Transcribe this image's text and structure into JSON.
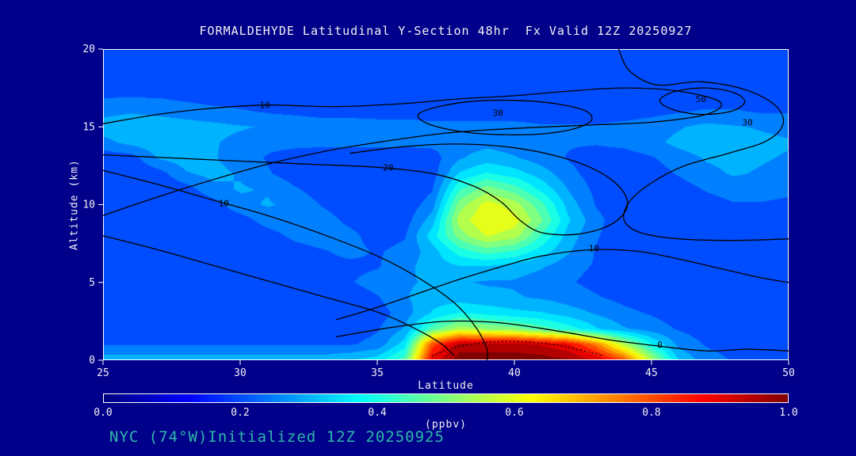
{
  "colors": {
    "background": "#00008B",
    "text": "#F2F2F2",
    "footer_text": "#2FB8A8",
    "contour_line": "#000000",
    "frame": "#FFFFFF"
  },
  "footer": "NYC (74°W)Initialized 12Z 20250925",
  "chart_data": {
    "type": "heatmap",
    "title": "FORMALDEHYDE Latitudinal Y-Section 48hr  Fx Valid 12Z 20250927",
    "xlabel": "Latitude",
    "ylabel": "Altitude (km)",
    "xlim": [
      25,
      50
    ],
    "ylim": [
      0,
      20
    ],
    "x_ticks": [
      25,
      30,
      35,
      40,
      45,
      50
    ],
    "y_ticks": [
      0,
      5,
      10,
      15,
      20
    ],
    "colormap": "jet",
    "grid": false,
    "x": [
      25,
      26,
      27,
      28,
      29,
      30,
      31,
      32,
      33,
      34,
      35,
      36,
      37,
      38,
      39,
      40,
      41,
      42,
      43,
      44,
      45,
      46,
      47,
      48,
      49,
      50
    ],
    "y": [
      0,
      1,
      2,
      3,
      4,
      5,
      6,
      7,
      8,
      9,
      10,
      11,
      12,
      13,
      14,
      15,
      16,
      17,
      18,
      19,
      20
    ],
    "values_units": "ppbv",
    "values": [
      [
        0.3,
        0.3,
        0.3,
        0.3,
        0.3,
        0.3,
        0.3,
        0.3,
        0.3,
        0.32,
        0.35,
        0.45,
        0.9,
        1.0,
        1.0,
        1.0,
        1.0,
        0.98,
        0.92,
        0.8,
        0.55,
        0.32,
        0.25,
        0.22,
        0.22,
        0.22
      ],
      [
        0.22,
        0.22,
        0.22,
        0.22,
        0.22,
        0.22,
        0.22,
        0.22,
        0.22,
        0.22,
        0.24,
        0.35,
        0.8,
        0.95,
        0.95,
        0.95,
        0.92,
        0.88,
        0.75,
        0.55,
        0.38,
        0.26,
        0.22,
        0.2,
        0.2,
        0.2
      ],
      [
        0.2,
        0.2,
        0.2,
        0.2,
        0.2,
        0.2,
        0.2,
        0.2,
        0.2,
        0.2,
        0.22,
        0.28,
        0.45,
        0.55,
        0.52,
        0.5,
        0.45,
        0.4,
        0.33,
        0.28,
        0.25,
        0.22,
        0.2,
        0.2,
        0.2,
        0.2
      ],
      [
        0.19,
        0.19,
        0.19,
        0.19,
        0.19,
        0.19,
        0.19,
        0.19,
        0.19,
        0.19,
        0.2,
        0.25,
        0.33,
        0.38,
        0.36,
        0.34,
        0.33,
        0.3,
        0.27,
        0.24,
        0.22,
        0.2,
        0.2,
        0.2,
        0.2,
        0.2
      ],
      [
        0.18,
        0.18,
        0.18,
        0.18,
        0.18,
        0.18,
        0.18,
        0.18,
        0.18,
        0.19,
        0.22,
        0.27,
        0.3,
        0.3,
        0.29,
        0.28,
        0.27,
        0.25,
        0.23,
        0.21,
        0.19,
        0.19,
        0.19,
        0.19,
        0.19,
        0.19
      ],
      [
        0.18,
        0.18,
        0.18,
        0.18,
        0.18,
        0.18,
        0.18,
        0.18,
        0.19,
        0.22,
        0.25,
        0.27,
        0.28,
        0.28,
        0.27,
        0.27,
        0.25,
        0.23,
        0.21,
        0.19,
        0.19,
        0.19,
        0.19,
        0.19,
        0.19,
        0.19
      ],
      [
        0.21,
        0.21,
        0.21,
        0.21,
        0.21,
        0.21,
        0.21,
        0.21,
        0.21,
        0.21,
        0.22,
        0.26,
        0.3,
        0.32,
        0.32,
        0.3,
        0.28,
        0.24,
        0.22,
        0.21,
        0.21,
        0.21,
        0.21,
        0.21,
        0.21,
        0.21
      ],
      [
        0.18,
        0.18,
        0.18,
        0.18,
        0.18,
        0.18,
        0.18,
        0.2,
        0.22,
        0.24,
        0.22,
        0.24,
        0.3,
        0.4,
        0.45,
        0.42,
        0.35,
        0.28,
        0.22,
        0.19,
        0.18,
        0.18,
        0.18,
        0.18,
        0.18,
        0.18
      ],
      [
        0.18,
        0.18,
        0.18,
        0.18,
        0.18,
        0.18,
        0.2,
        0.24,
        0.26,
        0.24,
        0.2,
        0.22,
        0.35,
        0.5,
        0.58,
        0.55,
        0.42,
        0.3,
        0.23,
        0.19,
        0.18,
        0.18,
        0.18,
        0.18,
        0.18,
        0.18
      ],
      [
        0.18,
        0.18,
        0.18,
        0.18,
        0.18,
        0.2,
        0.25,
        0.27,
        0.25,
        0.21,
        0.19,
        0.2,
        0.3,
        0.55,
        0.62,
        0.6,
        0.48,
        0.33,
        0.24,
        0.19,
        0.18,
        0.18,
        0.18,
        0.18,
        0.18,
        0.18
      ],
      [
        0.18,
        0.18,
        0.18,
        0.18,
        0.2,
        0.26,
        0.28,
        0.26,
        0.22,
        0.19,
        0.18,
        0.19,
        0.25,
        0.5,
        0.6,
        0.55,
        0.44,
        0.3,
        0.22,
        0.19,
        0.18,
        0.18,
        0.2,
        0.22,
        0.22,
        0.21
      ],
      [
        0.18,
        0.18,
        0.18,
        0.2,
        0.26,
        0.28,
        0.27,
        0.23,
        0.2,
        0.18,
        0.18,
        0.18,
        0.22,
        0.42,
        0.5,
        0.45,
        0.36,
        0.27,
        0.21,
        0.19,
        0.18,
        0.2,
        0.23,
        0.25,
        0.25,
        0.24
      ],
      [
        0.18,
        0.18,
        0.2,
        0.27,
        0.29,
        0.27,
        0.23,
        0.2,
        0.19,
        0.18,
        0.18,
        0.18,
        0.2,
        0.33,
        0.38,
        0.35,
        0.3,
        0.24,
        0.2,
        0.19,
        0.2,
        0.23,
        0.26,
        0.28,
        0.27,
        0.26
      ],
      [
        0.19,
        0.2,
        0.28,
        0.3,
        0.28,
        0.25,
        0.22,
        0.2,
        0.19,
        0.19,
        0.19,
        0.19,
        0.2,
        0.27,
        0.3,
        0.28,
        0.25,
        0.22,
        0.2,
        0.2,
        0.22,
        0.25,
        0.28,
        0.29,
        0.28,
        0.27
      ],
      [
        0.26,
        0.29,
        0.31,
        0.3,
        0.28,
        0.26,
        0.24,
        0.24,
        0.24,
        0.24,
        0.24,
        0.24,
        0.24,
        0.25,
        0.26,
        0.25,
        0.24,
        0.23,
        0.23,
        0.24,
        0.26,
        0.29,
        0.31,
        0.3,
        0.29,
        0.28
      ],
      [
        0.3,
        0.31,
        0.31,
        0.3,
        0.29,
        0.28,
        0.27,
        0.27,
        0.26,
        0.26,
        0.25,
        0.25,
        0.24,
        0.24,
        0.24,
        0.24,
        0.23,
        0.23,
        0.23,
        0.24,
        0.25,
        0.27,
        0.29,
        0.28,
        0.27,
        0.26
      ],
      [
        0.26,
        0.27,
        0.26,
        0.25,
        0.24,
        0.23,
        0.22,
        0.21,
        0.2,
        0.2,
        0.2,
        0.2,
        0.2,
        0.2,
        0.2,
        0.2,
        0.2,
        0.2,
        0.2,
        0.2,
        0.21,
        0.22,
        0.23,
        0.23,
        0.22,
        0.22
      ],
      [
        0.22,
        0.22,
        0.22,
        0.21,
        0.2,
        0.2,
        0.2,
        0.2,
        0.2,
        0.2,
        0.2,
        0.2,
        0.2,
        0.2,
        0.2,
        0.2,
        0.2,
        0.2,
        0.2,
        0.2,
        0.2,
        0.2,
        0.2,
        0.2,
        0.2,
        0.2
      ],
      [
        0.19,
        0.19,
        0.19,
        0.19,
        0.19,
        0.19,
        0.19,
        0.19,
        0.19,
        0.19,
        0.19,
        0.19,
        0.19,
        0.19,
        0.19,
        0.19,
        0.19,
        0.19,
        0.19,
        0.19,
        0.19,
        0.19,
        0.19,
        0.19,
        0.19,
        0.19
      ],
      [
        0.19,
        0.19,
        0.19,
        0.19,
        0.19,
        0.19,
        0.19,
        0.19,
        0.19,
        0.19,
        0.19,
        0.19,
        0.19,
        0.19,
        0.19,
        0.19,
        0.19,
        0.19,
        0.19,
        0.19,
        0.19,
        0.19,
        0.19,
        0.19,
        0.19,
        0.19
      ],
      [
        0.19,
        0.19,
        0.19,
        0.19,
        0.19,
        0.19,
        0.19,
        0.19,
        0.19,
        0.19,
        0.19,
        0.19,
        0.19,
        0.19,
        0.19,
        0.19,
        0.19,
        0.19,
        0.19,
        0.19,
        0.19,
        0.19,
        0.19,
        0.19,
        0.19,
        0.19
      ]
    ],
    "colorbar": {
      "label": "(ppbv)",
      "min": 0.0,
      "max": 1.0,
      "ticks": [
        "0.0",
        "0.2",
        "0.4",
        "0.6",
        "0.8",
        "1.0"
      ]
    },
    "contours": [
      {
        "level": 10,
        "closed": false,
        "dashed": false,
        "points": [
          [
            25,
            15.2
          ],
          [
            27,
            15.8
          ],
          [
            29,
            16.2
          ],
          [
            31,
            16.4
          ],
          [
            33.5,
            16.3
          ],
          [
            36,
            16.5
          ],
          [
            38,
            16.8
          ],
          [
            40,
            17.0
          ],
          [
            42,
            17.3
          ],
          [
            44,
            17.5
          ],
          [
            46,
            17.3
          ],
          [
            47.5,
            16.6
          ],
          [
            47,
            15.8
          ],
          [
            45,
            15.3
          ],
          [
            42.5,
            15.1
          ],
          [
            40,
            14.9
          ],
          [
            37.5,
            14.6
          ],
          [
            35,
            14.0
          ],
          [
            33,
            13.4
          ],
          [
            31,
            12.6
          ],
          [
            29,
            11.6
          ],
          [
            27,
            10.5
          ],
          [
            25,
            9.3
          ]
        ],
        "label": {
          "text": "10",
          "lat": 30.9,
          "alt": 16.4
        }
      },
      {
        "level": 30,
        "closed": true,
        "dashed": false,
        "points": [
          [
            36.5,
            15.8
          ],
          [
            37.5,
            16.4
          ],
          [
            39,
            16.7
          ],
          [
            41,
            16.6
          ],
          [
            42.5,
            16.1
          ],
          [
            42.8,
            15.4
          ],
          [
            42,
            14.8
          ],
          [
            40.5,
            14.5
          ],
          [
            38.5,
            14.6
          ],
          [
            37,
            15.1
          ]
        ],
        "label": {
          "text": "30",
          "lat": 39.4,
          "alt": 15.9
        }
      },
      {
        "level": 50,
        "closed": true,
        "dashed": false,
        "points": [
          [
            45.3,
            16.7
          ],
          [
            45.9,
            17.3
          ],
          [
            47,
            17.5
          ],
          [
            48,
            17.2
          ],
          [
            48.4,
            16.6
          ],
          [
            47.9,
            16.0
          ],
          [
            46.8,
            15.8
          ],
          [
            45.8,
            16.1
          ]
        ],
        "label": {
          "text": "50",
          "lat": 46.8,
          "alt": 16.8
        }
      },
      {
        "level": 30,
        "closed": false,
        "dashed": false,
        "points": [
          [
            43.8,
            20
          ],
          [
            44.2,
            18.6
          ],
          [
            45.2,
            17.7
          ],
          [
            46.8,
            17.9
          ],
          [
            48.4,
            17.4
          ],
          [
            49.5,
            16.4
          ],
          [
            49.8,
            15.2
          ],
          [
            49.2,
            14.1
          ],
          [
            47.8,
            13.3
          ],
          [
            46.2,
            12.5
          ],
          [
            45.0,
            11.4
          ],
          [
            44.2,
            10.2
          ],
          [
            44.0,
            9.0
          ],
          [
            44.6,
            8.2
          ],
          [
            46,
            7.8
          ],
          [
            48,
            7.7
          ],
          [
            50,
            7.8
          ]
        ],
        "label": {
          "text": "30",
          "lat": 48.5,
          "alt": 15.3
        }
      },
      {
        "level": 20,
        "closed": false,
        "dashed": false,
        "points": [
          [
            25,
            13.2
          ],
          [
            27.5,
            13.0
          ],
          [
            30,
            12.8
          ],
          [
            32.5,
            12.6
          ],
          [
            35,
            12.4
          ],
          [
            37,
            12.0
          ],
          [
            38.5,
            11.2
          ],
          [
            39.5,
            10.2
          ],
          [
            40.2,
            9.0
          ],
          [
            41.0,
            8.2
          ],
          [
            42.3,
            8.1
          ],
          [
            43.5,
            8.7
          ],
          [
            44.1,
            9.8
          ],
          [
            43.9,
            11.0
          ],
          [
            43.0,
            12.2
          ],
          [
            41.6,
            13.1
          ],
          [
            39.8,
            13.7
          ],
          [
            37.8,
            13.9
          ],
          [
            35.8,
            13.7
          ],
          [
            34,
            13.3
          ]
        ],
        "label": {
          "text": "20",
          "lat": 35.4,
          "alt": 12.4
        }
      },
      {
        "level": 10,
        "closed": false,
        "dashed": false,
        "points": [
          [
            33.5,
            2.6
          ],
          [
            35,
            3.4
          ],
          [
            36.5,
            4.3
          ],
          [
            38,
            5.2
          ],
          [
            39.5,
            6.0
          ],
          [
            41,
            6.7
          ],
          [
            42.8,
            7.1
          ],
          [
            44.5,
            7.0
          ],
          [
            46,
            6.5
          ],
          [
            47.5,
            5.9
          ],
          [
            49,
            5.3
          ],
          [
            50,
            5.0
          ]
        ],
        "label": {
          "text": "10",
          "lat": 42.9,
          "alt": 7.2
        }
      },
      {
        "level": 10,
        "closed": false,
        "dashed": false,
        "points": [
          [
            25,
            12.2
          ],
          [
            27,
            11.3
          ],
          [
            29,
            10.3
          ],
          [
            31,
            9.3
          ],
          [
            33,
            8.1
          ],
          [
            35,
            6.7
          ],
          [
            36.5,
            5.3
          ],
          [
            37.8,
            3.7
          ],
          [
            38.6,
            2.1
          ],
          [
            39.0,
            0.7
          ],
          [
            39.0,
            0
          ]
        ],
        "label": {
          "text": "10",
          "lat": 29.4,
          "alt": 10.1
        }
      },
      {
        "level": null,
        "closed": false,
        "dashed": false,
        "points": [
          [
            25,
            8.0
          ],
          [
            27,
            7.1
          ],
          [
            29,
            6.1
          ],
          [
            31,
            5.1
          ],
          [
            33,
            4.1
          ],
          [
            35,
            3.1
          ],
          [
            36.3,
            2.1
          ],
          [
            37.3,
            1.1
          ],
          [
            37.8,
            0.3
          ]
        ]
      },
      {
        "level": 0,
        "closed": false,
        "dashed": false,
        "points": [
          [
            33.5,
            1.5
          ],
          [
            35.5,
            2.1
          ],
          [
            37.5,
            2.5
          ],
          [
            39.5,
            2.4
          ],
          [
            41.5,
            1.9
          ],
          [
            43.5,
            1.3
          ],
          [
            45.3,
            0.9
          ],
          [
            47,
            0.6
          ],
          [
            48.5,
            0.7
          ],
          [
            50,
            0.6
          ]
        ],
        "label": {
          "text": "0",
          "lat": 45.3,
          "alt": 1.0
        }
      },
      {
        "level": 0,
        "closed": false,
        "dashed": true,
        "points": [
          [
            37.0,
            0.3
          ],
          [
            38.0,
            0.9
          ],
          [
            39.5,
            1.2
          ],
          [
            41.0,
            1.1
          ],
          [
            42.3,
            0.7
          ],
          [
            43.2,
            0.3
          ]
        ]
      }
    ]
  }
}
